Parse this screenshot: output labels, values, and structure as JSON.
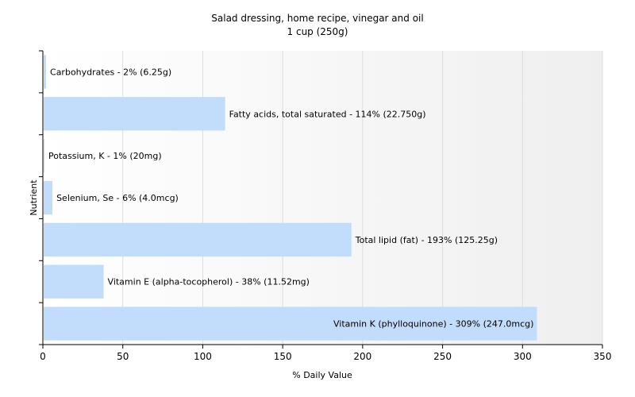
{
  "chart_data": {
    "type": "bar",
    "orientation": "horizontal",
    "title": "Salad dressing, home recipe, vinegar and oil",
    "subtitle": "1 cup (250g)",
    "xlabel": "% Daily Value",
    "ylabel": "Nutrient",
    "xlim": [
      0,
      350
    ],
    "xticks": [
      0,
      50,
      100,
      150,
      200,
      250,
      300,
      350
    ],
    "grid": true,
    "legend": "none",
    "bar_color": "#c2dcfb",
    "categories": [
      "Carbohydrates",
      "Fatty acids, total saturated",
      "Potassium, K",
      "Selenium, Se",
      "Total lipid (fat)",
      "Vitamin E (alpha-tocopherol)",
      "Vitamin K (phylloquinone)"
    ],
    "values": [
      2,
      114,
      1,
      6,
      193,
      38,
      309
    ],
    "labels": [
      "Carbohydrates - 2% (6.25g)",
      "Fatty acids, total saturated - 114% (22.750g)",
      "Potassium, K - 1% (20mg)",
      "Selenium, Se - 6% (4.0mcg)",
      "Total lipid (fat) - 193% (125.25g)",
      "Vitamin E (alpha-tocopherol) - 38% (11.52mg)",
      "Vitamin K (phylloquinone) - 309% (247.0mcg)"
    ]
  }
}
